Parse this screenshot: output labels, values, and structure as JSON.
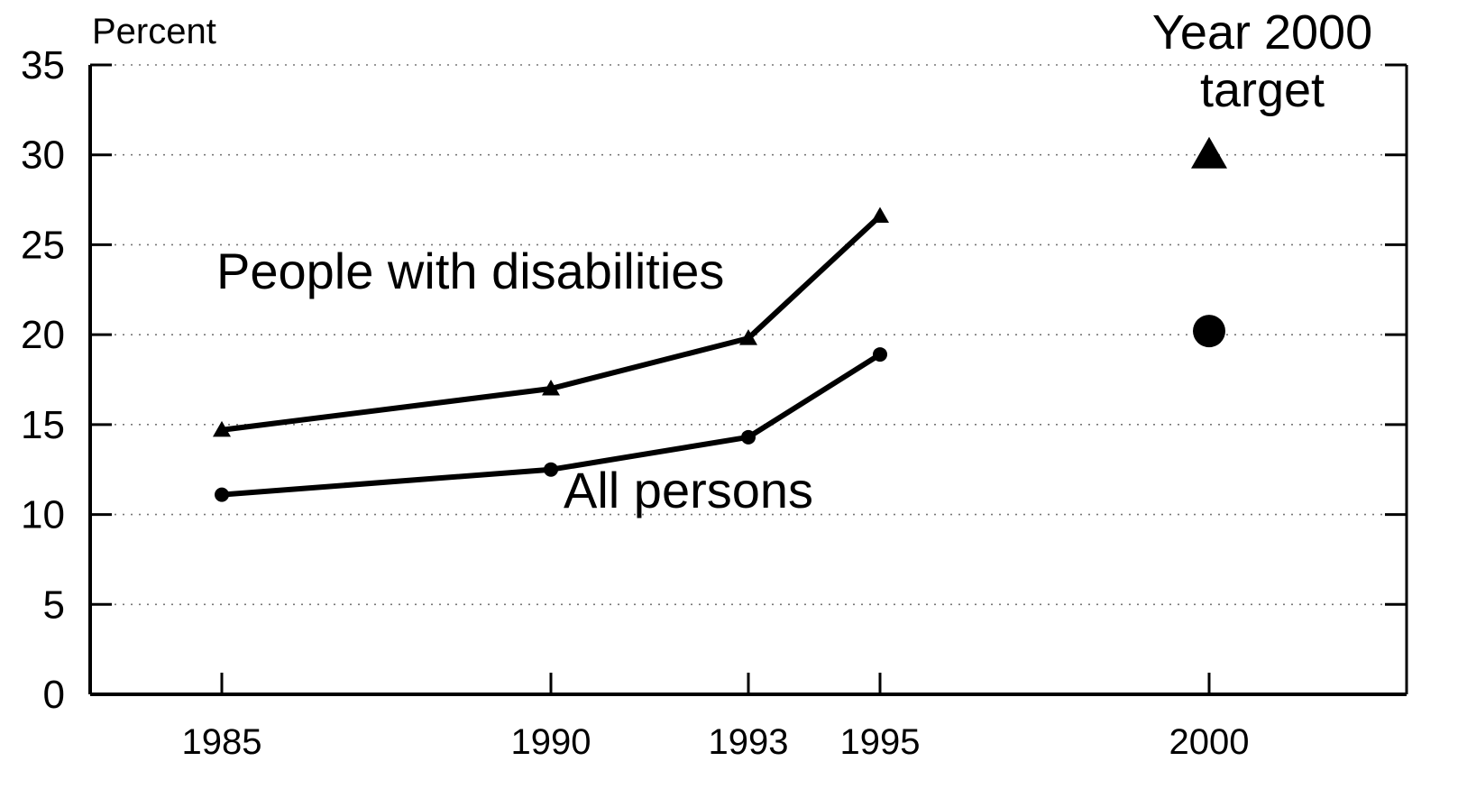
{
  "chart_data": {
    "type": "line",
    "ylabel": "Percent",
    "ylim": [
      0,
      35
    ],
    "yticks": [
      "0",
      "5",
      "10",
      "15",
      "20",
      "25",
      "30",
      "35"
    ],
    "xlim": [
      1983,
      2003
    ],
    "xticks": [
      "1985",
      "1990",
      "1993",
      "1995",
      "2000"
    ],
    "grid": true,
    "series": [
      {
        "name": "People with disabilities",
        "marker": "triangle",
        "x": [
          1985,
          1990,
          1993,
          1995
        ],
        "values": [
          14.7,
          17.0,
          19.8,
          26.6
        ],
        "target": {
          "x": 2000,
          "value": 30
        }
      },
      {
        "name": "All persons",
        "marker": "circle",
        "x": [
          1985,
          1990,
          1993,
          1995
        ],
        "values": [
          11.1,
          12.5,
          14.3,
          18.9
        ],
        "target": {
          "x": 2000,
          "value": 20.2
        }
      }
    ],
    "annotation": {
      "line1": "Year 2000",
      "line2": "target"
    },
    "colors": {
      "line": "#000000",
      "grid": "#777777"
    }
  }
}
